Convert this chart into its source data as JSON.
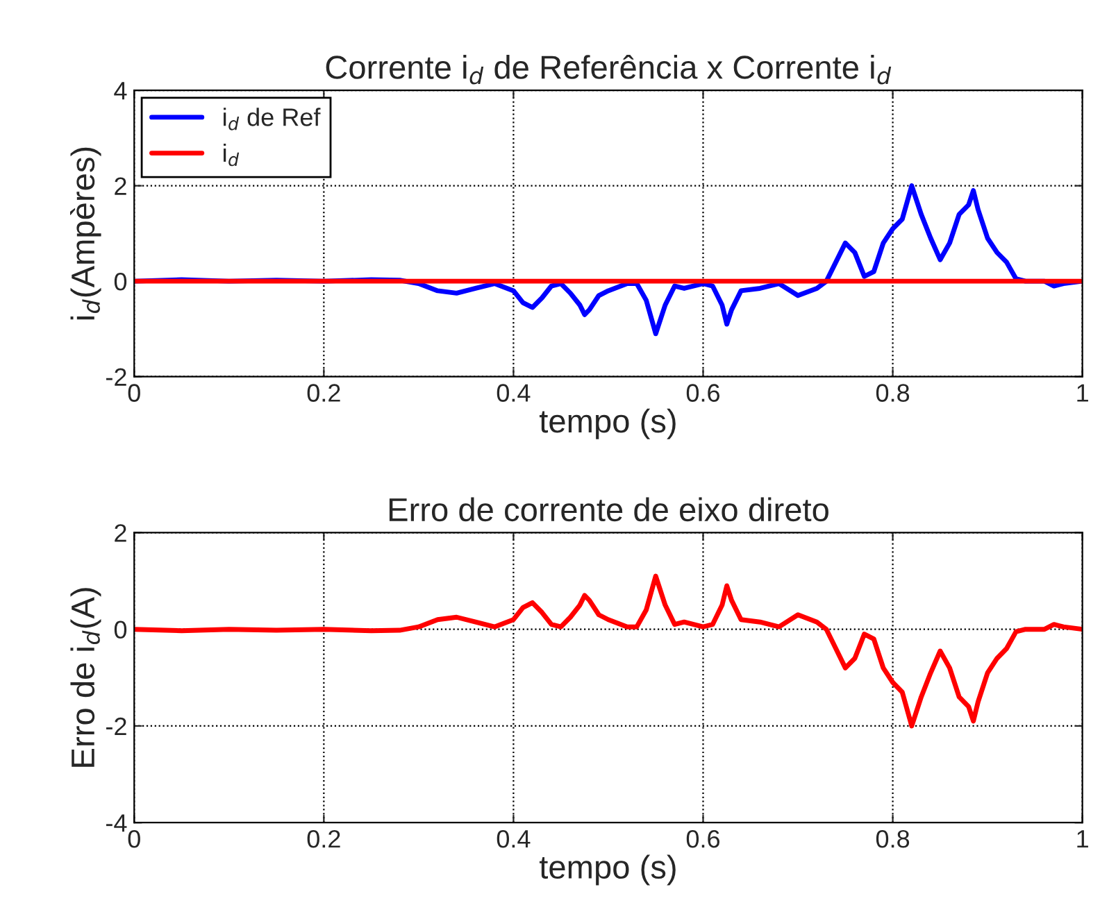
{
  "chart_data": [
    {
      "type": "line",
      "title": "Corrente i$_{d}$ de Referência x Corrente i$_{d}$",
      "xlabel": "tempo (s)",
      "ylabel": "i$_{d}$(Ampères)",
      "xlim": [
        0,
        1
      ],
      "xticks": [
        0,
        0.2,
        0.4,
        0.6,
        0.8,
        1
      ],
      "ylim": [
        -2,
        4
      ],
      "yticks": [
        -2,
        0,
        2,
        4
      ],
      "grid": true,
      "legend": "top left",
      "series": [
        {
          "name": "i$_{d}$ de Ref",
          "color": "#0000ff",
          "x": [
            0,
            0.05,
            0.1,
            0.15,
            0.2,
            0.25,
            0.28,
            0.3,
            0.32,
            0.34,
            0.36,
            0.38,
            0.4,
            0.41,
            0.42,
            0.43,
            0.44,
            0.45,
            0.46,
            0.47,
            0.475,
            0.48,
            0.49,
            0.5,
            0.52,
            0.53,
            0.54,
            0.55,
            0.56,
            0.57,
            0.58,
            0.6,
            0.61,
            0.62,
            0.625,
            0.63,
            0.64,
            0.66,
            0.68,
            0.7,
            0.72,
            0.73,
            0.74,
            0.75,
            0.76,
            0.77,
            0.78,
            0.79,
            0.8,
            0.81,
            0.82,
            0.83,
            0.84,
            0.85,
            0.86,
            0.87,
            0.88,
            0.885,
            0.89,
            0.9,
            0.91,
            0.92,
            0.93,
            0.94,
            0.96,
            0.97,
            0.98,
            1
          ],
          "values": [
            0,
            0.03,
            0,
            0.02,
            0,
            0.03,
            0.02,
            -0.05,
            -0.2,
            -0.25,
            -0.15,
            -0.05,
            -0.2,
            -0.45,
            -0.55,
            -0.35,
            -0.1,
            -0.05,
            -0.25,
            -0.5,
            -0.7,
            -0.6,
            -0.3,
            -0.2,
            -0.05,
            -0.05,
            -0.4,
            -1.1,
            -0.5,
            -0.1,
            -0.15,
            -0.05,
            -0.1,
            -0.5,
            -0.9,
            -0.6,
            -0.2,
            -0.15,
            -0.05,
            -0.3,
            -0.15,
            0,
            0.4,
            0.8,
            0.6,
            0.1,
            0.2,
            0.8,
            1.1,
            1.3,
            2.0,
            1.4,
            0.9,
            0.45,
            0.8,
            1.4,
            1.6,
            1.9,
            1.5,
            0.9,
            0.6,
            0.4,
            0.05,
            0,
            0,
            -0.1,
            -0.05,
            0
          ]
        },
        {
          "name": "i$_{d}$",
          "color": "#ff0000",
          "x": [
            0,
            1
          ],
          "values": [
            0,
            0
          ]
        }
      ]
    },
    {
      "type": "line",
      "title": "Erro de corrente de eixo direto",
      "xlabel": "tempo (s)",
      "ylabel": "Erro de i$_{d}$(A)",
      "xlim": [
        0,
        1
      ],
      "xticks": [
        0,
        0.2,
        0.4,
        0.6,
        0.8,
        1
      ],
      "ylim": [
        -4,
        2
      ],
      "yticks": [
        -4,
        -2,
        0,
        2
      ],
      "grid": true,
      "series": [
        {
          "color": "#ff0000",
          "x": [
            0,
            0.05,
            0.1,
            0.15,
            0.2,
            0.25,
            0.28,
            0.3,
            0.32,
            0.34,
            0.36,
            0.38,
            0.4,
            0.41,
            0.42,
            0.43,
            0.44,
            0.45,
            0.46,
            0.47,
            0.475,
            0.48,
            0.49,
            0.5,
            0.52,
            0.53,
            0.54,
            0.55,
            0.56,
            0.57,
            0.58,
            0.6,
            0.61,
            0.62,
            0.625,
            0.63,
            0.64,
            0.66,
            0.68,
            0.7,
            0.72,
            0.73,
            0.74,
            0.75,
            0.76,
            0.77,
            0.78,
            0.79,
            0.8,
            0.81,
            0.82,
            0.83,
            0.84,
            0.85,
            0.86,
            0.87,
            0.88,
            0.885,
            0.89,
            0.9,
            0.91,
            0.92,
            0.93,
            0.94,
            0.96,
            0.97,
            0.98,
            1
          ],
          "values": [
            0,
            -0.03,
            0,
            -0.02,
            0,
            -0.03,
            -0.02,
            0.05,
            0.2,
            0.25,
            0.15,
            0.05,
            0.2,
            0.45,
            0.55,
            0.35,
            0.1,
            0.05,
            0.25,
            0.5,
            0.7,
            0.6,
            0.3,
            0.2,
            0.05,
            0.05,
            0.4,
            1.1,
            0.5,
            0.1,
            0.15,
            0.05,
            0.1,
            0.5,
            0.9,
            0.6,
            0.2,
            0.15,
            0.05,
            0.3,
            0.15,
            0,
            -0.4,
            -0.8,
            -0.6,
            -0.1,
            -0.2,
            -0.8,
            -1.1,
            -1.3,
            -2.0,
            -1.4,
            -0.9,
            -0.45,
            -0.8,
            -1.4,
            -1.6,
            -1.9,
            -1.5,
            -0.9,
            -0.6,
            -0.4,
            -0.05,
            0,
            0,
            0.1,
            0.05,
            0
          ]
        }
      ]
    }
  ]
}
